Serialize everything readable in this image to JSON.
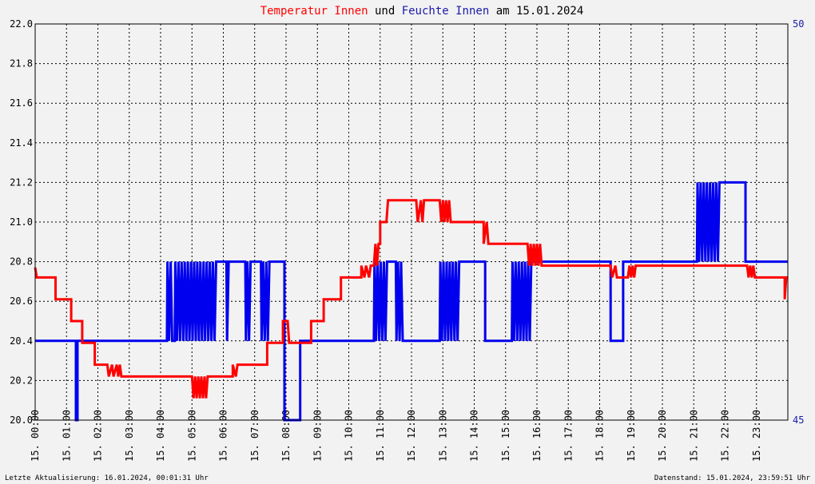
{
  "colors": {
    "temperature": "#ff0000",
    "humidity": "#0000ee",
    "grid": "#000000",
    "background": "#f2f2f2",
    "text": "#000000"
  },
  "title_parts": [
    {
      "text": "Temperatur Innen",
      "color": "#ff0000"
    },
    {
      "text": " und ",
      "color": "#000000"
    },
    {
      "text": "Feuchte Innen",
      "color": "#1a1aaa"
    },
    {
      "text": " am 15.01.2024",
      "color": "#000000"
    }
  ],
  "footer": {
    "left": "Letzte Aktualisierung: 16.01.2024, 00:01:31 Uhr",
    "right": "Datenstand: 15.01.2024, 23:59:51 Uhr"
  },
  "chart_data": {
    "type": "line",
    "x_range": [
      0,
      24
    ],
    "x_tick_labels": [
      "15. 00:00",
      "15. 01:00",
      "15. 02:00",
      "15. 03:00",
      "15. 04:00",
      "15. 05:00",
      "15. 06:00",
      "15. 07:00",
      "15. 08:00",
      "15. 09:00",
      "15. 10:00",
      "15. 11:00",
      "15. 12:00",
      "15. 13:00",
      "15. 14:00",
      "15. 15:00",
      "15. 16:00",
      "15. 17:00",
      "15. 18:00",
      "15. 19:00",
      "15. 20:00",
      "15. 21:00",
      "15. 22:00",
      "15. 23:00"
    ],
    "y_left": {
      "range": [
        20.0,
        22.0
      ],
      "ticks": [
        "20.0",
        "20.2",
        "20.4",
        "20.6",
        "20.8",
        "21.0",
        "21.2",
        "21.4",
        "21.6",
        "21.8",
        "22.0"
      ]
    },
    "y_right": {
      "range": [
        45,
        50
      ],
      "tick_labels": [
        "45",
        "50"
      ]
    },
    "grid": true,
    "series": [
      {
        "axis": "left",
        "points": [
          [
            0,
            20.77
          ],
          [
            0.05,
            20.72
          ],
          [
            0.65,
            20.72
          ],
          [
            0.65,
            20.61
          ],
          [
            1.15,
            20.61
          ],
          [
            1.15,
            20.5
          ],
          [
            1.5,
            20.5
          ],
          [
            1.5,
            20.39
          ],
          [
            1.9,
            20.39
          ],
          [
            1.9,
            20.28
          ],
          [
            2.3,
            20.28
          ],
          [
            2.35,
            20.22
          ],
          [
            2.45,
            20.28
          ],
          [
            2.5,
            20.22
          ],
          [
            2.6,
            20.28
          ],
          [
            2.65,
            20.22
          ],
          [
            2.7,
            20.28
          ],
          [
            2.75,
            20.22
          ],
          [
            5.0,
            20.22
          ],
          [
            5.05,
            20.11
          ],
          [
            5.1,
            20.22
          ],
          [
            5.15,
            20.11
          ],
          [
            5.2,
            20.22
          ],
          [
            5.25,
            20.11
          ],
          [
            5.3,
            20.22
          ],
          [
            5.35,
            20.11
          ],
          [
            5.4,
            20.22
          ],
          [
            5.45,
            20.11
          ],
          [
            5.5,
            20.22
          ],
          [
            6.3,
            20.22
          ],
          [
            6.3,
            20.28
          ],
          [
            6.4,
            20.22
          ],
          [
            6.45,
            20.28
          ],
          [
            7.4,
            20.28
          ],
          [
            7.4,
            20.39
          ],
          [
            7.9,
            20.39
          ],
          [
            7.9,
            20.5
          ],
          [
            8.05,
            20.5
          ],
          [
            8.1,
            20.39
          ],
          [
            8.8,
            20.39
          ],
          [
            8.8,
            20.5
          ],
          [
            9.2,
            20.5
          ],
          [
            9.2,
            20.61
          ],
          [
            9.75,
            20.61
          ],
          [
            9.75,
            20.72
          ],
          [
            10.4,
            20.72
          ],
          [
            10.4,
            20.78
          ],
          [
            10.5,
            20.72
          ],
          [
            10.55,
            20.78
          ],
          [
            10.65,
            20.72
          ],
          [
            10.7,
            20.78
          ],
          [
            10.8,
            20.78
          ],
          [
            10.85,
            20.89
          ],
          [
            10.9,
            20.78
          ],
          [
            10.95,
            20.89
          ],
          [
            11.0,
            20.89
          ],
          [
            11.0,
            21.0
          ],
          [
            11.2,
            21.0
          ],
          [
            11.25,
            21.11
          ],
          [
            12.15,
            21.11
          ],
          [
            12.2,
            21.0
          ],
          [
            12.3,
            21.11
          ],
          [
            12.35,
            21.0
          ],
          [
            12.4,
            21.11
          ],
          [
            12.9,
            21.11
          ],
          [
            12.95,
            21.0
          ],
          [
            13.0,
            21.11
          ],
          [
            13.05,
            21.0
          ],
          [
            13.1,
            21.11
          ],
          [
            13.15,
            21.0
          ],
          [
            13.2,
            21.11
          ],
          [
            13.25,
            21.0
          ],
          [
            13.3,
            21.0
          ],
          [
            13.35,
            21.0
          ],
          [
            14.3,
            21.0
          ],
          [
            14.3,
            20.89
          ],
          [
            14.4,
            21.0
          ],
          [
            14.45,
            20.89
          ],
          [
            15.7,
            20.89
          ],
          [
            15.75,
            20.78
          ],
          [
            15.8,
            20.89
          ],
          [
            15.85,
            20.78
          ],
          [
            15.9,
            20.89
          ],
          [
            15.95,
            20.78
          ],
          [
            16.0,
            20.89
          ],
          [
            16.05,
            20.78
          ],
          [
            16.1,
            20.89
          ],
          [
            16.15,
            20.78
          ],
          [
            18.35,
            20.78
          ],
          [
            18.4,
            20.72
          ],
          [
            18.5,
            20.78
          ],
          [
            18.55,
            20.72
          ],
          [
            18.9,
            20.72
          ],
          [
            18.95,
            20.78
          ],
          [
            19.0,
            20.72
          ],
          [
            19.05,
            20.78
          ],
          [
            19.1,
            20.72
          ],
          [
            19.15,
            20.78
          ],
          [
            22.7,
            20.78
          ],
          [
            22.75,
            20.72
          ],
          [
            22.8,
            20.78
          ],
          [
            22.85,
            20.72
          ],
          [
            22.9,
            20.78
          ],
          [
            22.95,
            20.72
          ],
          [
            23.0,
            20.72
          ],
          [
            23.9,
            20.72
          ],
          [
            23.9,
            20.61
          ],
          [
            23.95,
            20.72
          ],
          [
            24,
            20.72
          ]
        ]
      },
      {
        "axis": "right",
        "points": [
          [
            0,
            46.0
          ],
          [
            1.3,
            46.0
          ],
          [
            1.3,
            45.0
          ],
          [
            1.35,
            45.0
          ],
          [
            1.35,
            46.0
          ],
          [
            4.2,
            46.0
          ],
          [
            4.22,
            47.0
          ],
          [
            4.27,
            46.0
          ],
          [
            4.32,
            47.0
          ],
          [
            4.37,
            46.0
          ],
          [
            4.45,
            46.0
          ],
          [
            4.47,
            47.0
          ],
          [
            4.52,
            46.0
          ],
          [
            4.57,
            47.0
          ],
          [
            4.62,
            46.0
          ],
          [
            4.67,
            47.0
          ],
          [
            4.72,
            46.0
          ],
          [
            4.77,
            47.0
          ],
          [
            4.82,
            46.0
          ],
          [
            4.87,
            47.0
          ],
          [
            4.92,
            46.0
          ],
          [
            4.97,
            47.0
          ],
          [
            5.02,
            46.0
          ],
          [
            5.07,
            47.0
          ],
          [
            5.12,
            46.0
          ],
          [
            5.17,
            47.0
          ],
          [
            5.22,
            46.0
          ],
          [
            5.27,
            47.0
          ],
          [
            5.32,
            46.0
          ],
          [
            5.37,
            47.0
          ],
          [
            5.42,
            46.0
          ],
          [
            5.47,
            47.0
          ],
          [
            5.52,
            46.0
          ],
          [
            5.57,
            47.0
          ],
          [
            5.62,
            46.0
          ],
          [
            5.67,
            47.0
          ],
          [
            5.72,
            46.0
          ],
          [
            5.77,
            47.0
          ],
          [
            6.1,
            47.0
          ],
          [
            6.12,
            46.0
          ],
          [
            6.17,
            47.0
          ],
          [
            6.7,
            47.0
          ],
          [
            6.72,
            46.0
          ],
          [
            6.77,
            47.0
          ],
          [
            6.82,
            46.0
          ],
          [
            6.87,
            47.0
          ],
          [
            7.2,
            47.0
          ],
          [
            7.22,
            46.0
          ],
          [
            7.27,
            47.0
          ],
          [
            7.32,
            46.0
          ],
          [
            7.37,
            47.0
          ],
          [
            7.42,
            46.0
          ],
          [
            7.47,
            47.0
          ],
          [
            7.95,
            47.0
          ],
          [
            7.95,
            45.0
          ],
          [
            8.45,
            45.0
          ],
          [
            8.45,
            46.0
          ],
          [
            10.8,
            46.0
          ],
          [
            10.82,
            47.0
          ],
          [
            10.87,
            46.0
          ],
          [
            10.92,
            47.0
          ],
          [
            10.97,
            46.0
          ],
          [
            11.02,
            47.0
          ],
          [
            11.07,
            46.0
          ],
          [
            11.12,
            47.0
          ],
          [
            11.17,
            46.0
          ],
          [
            11.22,
            47.0
          ],
          [
            11.5,
            47.0
          ],
          [
            11.52,
            46.0
          ],
          [
            11.57,
            47.0
          ],
          [
            11.62,
            46.0
          ],
          [
            11.67,
            47.0
          ],
          [
            11.72,
            46.0
          ],
          [
            12.9,
            46.0
          ],
          [
            12.92,
            47.0
          ],
          [
            12.97,
            46.0
          ],
          [
            13.02,
            47.0
          ],
          [
            13.07,
            46.0
          ],
          [
            13.12,
            47.0
          ],
          [
            13.17,
            46.0
          ],
          [
            13.22,
            47.0
          ],
          [
            13.27,
            46.0
          ],
          [
            13.32,
            47.0
          ],
          [
            13.37,
            46.0
          ],
          [
            13.42,
            47.0
          ],
          [
            13.47,
            46.0
          ],
          [
            13.52,
            47.0
          ],
          [
            14.35,
            47.0
          ],
          [
            14.35,
            46.0
          ],
          [
            15.2,
            46.0
          ],
          [
            15.22,
            47.0
          ],
          [
            15.27,
            46.0
          ],
          [
            15.32,
            47.0
          ],
          [
            15.37,
            46.0
          ],
          [
            15.42,
            47.0
          ],
          [
            15.47,
            46.0
          ],
          [
            15.52,
            47.0
          ],
          [
            15.57,
            46.0
          ],
          [
            15.62,
            47.0
          ],
          [
            15.67,
            46.0
          ],
          [
            15.72,
            47.0
          ],
          [
            15.77,
            46.0
          ],
          [
            15.82,
            47.0
          ],
          [
            18.35,
            47.0
          ],
          [
            18.35,
            46.0
          ],
          [
            18.75,
            46.0
          ],
          [
            18.75,
            47.0
          ],
          [
            21.1,
            47.0
          ],
          [
            21.12,
            48.0
          ],
          [
            21.17,
            47.0
          ],
          [
            21.22,
            48.0
          ],
          [
            21.27,
            47.0
          ],
          [
            21.32,
            48.0
          ],
          [
            21.37,
            47.0
          ],
          [
            21.42,
            48.0
          ],
          [
            21.47,
            47.0
          ],
          [
            21.52,
            48.0
          ],
          [
            21.57,
            47.0
          ],
          [
            21.62,
            48.0
          ],
          [
            21.67,
            47.0
          ],
          [
            21.72,
            48.0
          ],
          [
            21.77,
            47.0
          ],
          [
            21.82,
            48.0
          ],
          [
            22.65,
            48.0
          ],
          [
            22.65,
            47.0
          ],
          [
            24,
            47.0
          ]
        ]
      }
    ]
  }
}
